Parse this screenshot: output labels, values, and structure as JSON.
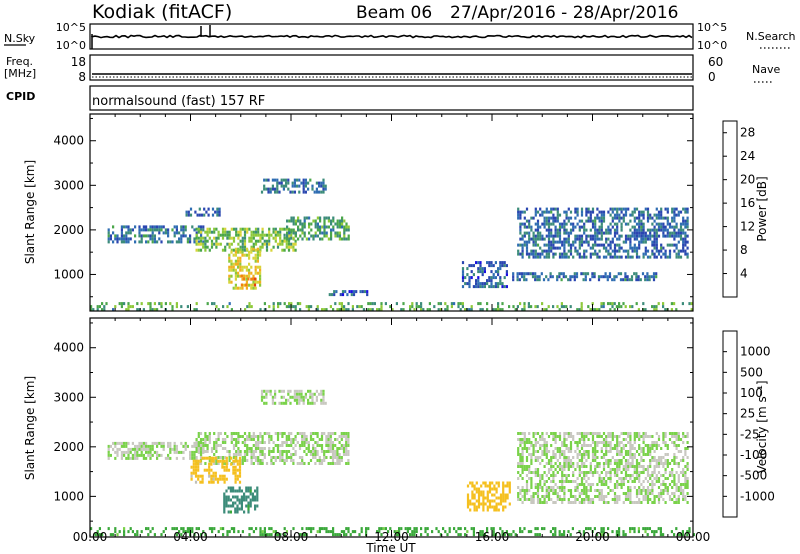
{
  "header": {
    "station": "Kodiak (fitACF)",
    "beam": "Beam 06",
    "dates": "27/Apr/2016 - 28/Apr/2016"
  },
  "sky_panel": {
    "left_label": "N.Sky",
    "left_ticks": [
      "10^5",
      "10^0"
    ],
    "right_ticks": [
      "10^5",
      "10^0"
    ],
    "right_label": "N.Search"
  },
  "freq_panel": {
    "left_label_1": "Freq.",
    "left_label_2": "[MHz]",
    "left_ticks": [
      "18",
      "8"
    ],
    "right_ticks": [
      "60",
      "0"
    ],
    "right_label": "Nave"
  },
  "cpid_panel": {
    "label": "CPID",
    "mode": "normalsound (fast) 157 RF"
  },
  "colors": {
    "power": [
      "#1a10e0",
      "#2a46b0",
      "#2f6db2",
      "#3c8c7a",
      "#4aa64a",
      "#8ec93a",
      "#d8d43a",
      "#f0b020",
      "#f08010",
      "#e84010",
      "#e00000"
    ],
    "velocity": [
      "#e00000",
      "#ff5000",
      "#ff9a00",
      "#f5c020",
      "#c0c0b8",
      "#c8c8c0",
      "#7ad24a",
      "#3aa83a",
      "#3c8c7a",
      "#2a5aa8",
      "#1a20d0"
    ]
  },
  "chart_data": [
    {
      "type": "heatmap",
      "title": "Power",
      "ylabel": "Slant Range [km]",
      "xlabel": "",
      "xlim": [
        0,
        24
      ],
      "ylim": [
        180,
        4600
      ],
      "x_ticks": [
        "00:00",
        "04:00",
        "08:00",
        "12:00",
        "16:00",
        "20:00",
        "00:00"
      ],
      "y_ticks": [
        1000,
        2000,
        3000,
        4000
      ],
      "colorbar": {
        "label": "Power [dB]",
        "ticks": [
          4,
          8,
          12,
          16,
          20,
          24,
          28
        ],
        "range": [
          0,
          30
        ]
      },
      "echo_regions": [
        {
          "t0": 0.7,
          "t1": 4.5,
          "r0": 1700,
          "r1": 2100,
          "value": 8
        },
        {
          "t0": 4.2,
          "t1": 8.2,
          "r0": 1550,
          "r1": 2050,
          "value": 14
        },
        {
          "t0": 7.8,
          "t1": 10.3,
          "r0": 1800,
          "r1": 2300,
          "value": 11
        },
        {
          "t0": 5.5,
          "t1": 6.8,
          "r0": 700,
          "r1": 1600,
          "value": 18
        },
        {
          "t0": 6.0,
          "t1": 6.6,
          "r0": 750,
          "r1": 1000,
          "value": 22
        },
        {
          "t0": 6.8,
          "t1": 9.4,
          "r0": 2850,
          "r1": 3150,
          "value": 7
        },
        {
          "t0": 3.8,
          "t1": 5.2,
          "r0": 2350,
          "r1": 2500,
          "value": 7
        },
        {
          "t0": 9.5,
          "t1": 11.0,
          "r0": 550,
          "r1": 650,
          "value": 6
        },
        {
          "t0": 14.8,
          "t1": 16.6,
          "r0": 700,
          "r1": 1300,
          "value": 6
        },
        {
          "t0": 16.8,
          "t1": 22.5,
          "r0": 850,
          "r1": 1050,
          "value": 7
        },
        {
          "t0": 17.0,
          "t1": 23.8,
          "r0": 1400,
          "r1": 2500,
          "value": 7
        },
        {
          "t0": 0.0,
          "t1": 24.0,
          "r0": 200,
          "r1": 380,
          "value": 12
        }
      ]
    },
    {
      "type": "heatmap",
      "title": "Velocity",
      "ylabel": "Slant Range [km]",
      "xlabel": "Time UT",
      "xlim": [
        0,
        24
      ],
      "ylim": [
        180,
        4600
      ],
      "x_ticks": [
        "00:00",
        "04:00",
        "08:00",
        "12:00",
        "16:00",
        "20:00",
        "00:00"
      ],
      "y_ticks": [
        1000,
        2000,
        3000,
        4000
      ],
      "colorbar": {
        "label": "Velocity [m s⁻¹]",
        "ticks": [
          1000,
          500,
          100,
          25,
          -25,
          -100,
          -500,
          -1000
        ]
      },
      "echo_regions": [
        {
          "t0": 0.7,
          "t1": 4.5,
          "r0": 1750,
          "r1": 2100,
          "value": 0
        },
        {
          "t0": 4.2,
          "t1": 10.3,
          "r0": 1650,
          "r1": 2300,
          "value": 0
        },
        {
          "t0": 4.0,
          "t1": 6.0,
          "r0": 1300,
          "r1": 1800,
          "value": -150
        },
        {
          "t0": 5.3,
          "t1": 6.7,
          "r0": 700,
          "r1": 1200,
          "value": 150
        },
        {
          "t0": 6.8,
          "t1": 9.4,
          "r0": 2850,
          "r1": 3150,
          "value": 0
        },
        {
          "t0": 15.0,
          "t1": 16.7,
          "r0": 700,
          "r1": 1300,
          "value": -300
        },
        {
          "t0": 17.0,
          "t1": 23.8,
          "r0": 900,
          "r1": 2300,
          "value": 0
        },
        {
          "t0": 0.0,
          "t1": 24.0,
          "r0": 200,
          "r1": 380,
          "value": 50
        }
      ]
    }
  ]
}
